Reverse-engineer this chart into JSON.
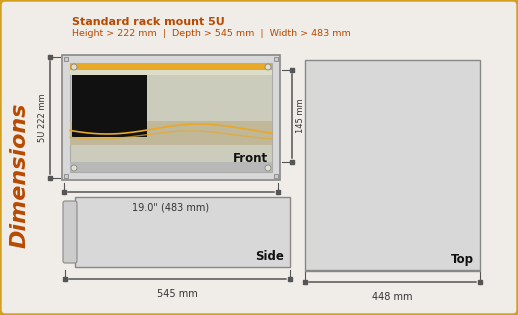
{
  "bg_color": "#f0ede8",
  "border_color": "#d4a020",
  "title_line1": "Standard rack mount 5U",
  "title_line2": "Height > 222 mm  |  Depth > 545 mm  |  Width > 483 mm",
  "title_color": "#b84a00",
  "sidebar_text": "Dimensions",
  "sidebar_color": "#b84a00",
  "front_label": "Front",
  "side_label": "Side",
  "top_label": "Top",
  "dim_483": "19.0\" (483 mm)",
  "dim_222": "5U 222 mm",
  "dim_145": "145 mm",
  "dim_545": "545 mm",
  "dim_448": "448 mm",
  "label_color": "#333333",
  "device_bg": "#d8d8d8",
  "device_border": "#888888",
  "orange_stripe": "#e8a828",
  "black_screen": "#111111",
  "side_bg": "#d8d8d8",
  "top_bg": "#d8d8d8",
  "screw_color": "#aaaaaa",
  "mid_bg": "#c8c8b8",
  "bot_bar_color": "#b8b8b8"
}
